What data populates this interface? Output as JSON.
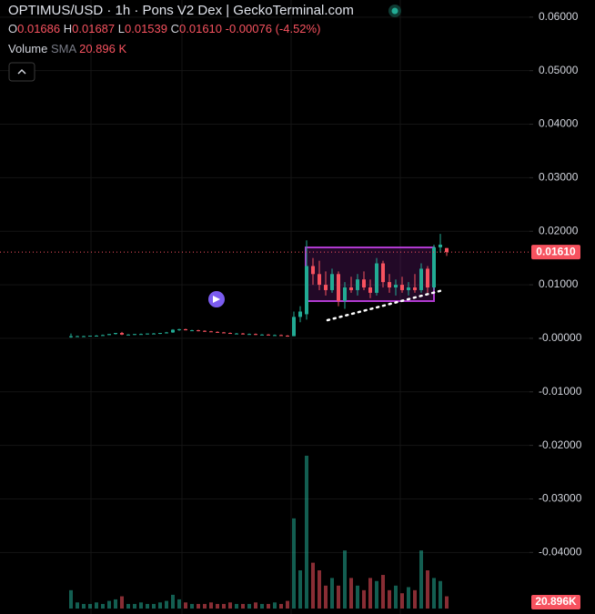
{
  "chart_data": {
    "type": "candlestick",
    "title": "OPTIMUS/USD · 1h · Pons V2 Dex | GeckoTerminal.com",
    "ohlc_labels": [
      "O",
      "H",
      "L",
      "C"
    ],
    "legend_values": [
      "0.01686",
      "0.01687",
      "0.01539",
      "0.01610"
    ],
    "change_label": "-0.00076 (-4.52%)",
    "volume_label": "Volume",
    "volume_sma_label": "SMA",
    "volume_sma_value": "20.896 K",
    "volume_last_label": "20.896K",
    "up_color": "#22ab94",
    "down_color": "#f7525f",
    "grid": true,
    "ylim": [
      -0.0515,
      0.0632
    ],
    "yticks": [
      {
        "value": 0.06,
        "label": "0.06000"
      },
      {
        "value": 0.05,
        "label": "0.05000"
      },
      {
        "value": 0.04,
        "label": "0.04000"
      },
      {
        "value": 0.03,
        "label": "0.03000"
      },
      {
        "value": 0.02,
        "label": "0.02000"
      },
      {
        "value": 0.01,
        "label": "0.01000"
      },
      {
        "value": 0,
        "label": "-0.00000"
      },
      {
        "value": -0.01,
        "label": "-0.01000"
      },
      {
        "value": -0.02,
        "label": "-0.02000"
      },
      {
        "value": -0.03,
        "label": "-0.03000"
      },
      {
        "value": -0.04,
        "label": "-0.04000"
      }
    ],
    "open": [
      0.0002,
      0.0004,
      0.0004,
      0.0004,
      0.0005,
      0.0005,
      0.0006,
      0.0008,
      0.001,
      0.0007,
      0.0007,
      0.0008,
      0.0008,
      0.0009,
      0.0009,
      0.001,
      0.0011,
      0.0016,
      0.0017,
      0.0015,
      0.0015,
      0.0014,
      0.0013,
      0.0012,
      0.0011,
      0.001,
      0.0009,
      0.0009,
      0.0008,
      0.0008,
      0.0007,
      0.0007,
      0.0006,
      0.0006,
      0.0005,
      0.0004,
      0.004,
      0.0045,
      0.0135,
      0.012,
      0.01,
      0.009,
      0.012,
      0.007,
      0.0095,
      0.009,
      0.011,
      0.0095,
      0.0085,
      0.014,
      0.0105,
      0.0095,
      0.01,
      0.009,
      0.0095,
      0.009,
      0.013,
      0.0095,
      0.017,
      0.01686
    ],
    "high": [
      0.0009,
      0.0005,
      0.0005,
      0.0005,
      0.0006,
      0.0007,
      0.0008,
      0.001,
      0.0012,
      0.0008,
      0.0008,
      0.0009,
      0.0009,
      0.001,
      0.001,
      0.0012,
      0.0017,
      0.0018,
      0.0018,
      0.0016,
      0.0016,
      0.0015,
      0.0014,
      0.0013,
      0.0012,
      0.0011,
      0.001,
      0.001,
      0.0009,
      0.0009,
      0.0008,
      0.0008,
      0.0007,
      0.0007,
      0.0006,
      0.005,
      0.006,
      0.0183,
      0.015,
      0.0145,
      0.0125,
      0.013,
      0.0125,
      0.0105,
      0.0115,
      0.012,
      0.0125,
      0.011,
      0.015,
      0.0145,
      0.012,
      0.011,
      0.0115,
      0.0105,
      0.012,
      0.014,
      0.0135,
      0.0175,
      0.0195,
      0.01687
    ],
    "low": [
      0.0001,
      0.0003,
      0.0003,
      0.0004,
      0.0004,
      0.0005,
      0.0006,
      0.0007,
      0.0006,
      0.0006,
      0.0006,
      0.0007,
      0.0007,
      0.0008,
      0.0008,
      0.0009,
      0.001,
      0.0014,
      0.0015,
      0.0014,
      0.0013,
      0.0012,
      0.0012,
      0.001,
      0.001,
      0.0009,
      0.0008,
      0.0007,
      0.0007,
      0.0006,
      0.0006,
      0.0006,
      0.0005,
      0.0005,
      0.0003,
      0.0004,
      0.003,
      0.0035,
      0.01,
      0.009,
      0.008,
      0.0085,
      0.006,
      0.0055,
      0.0085,
      0.008,
      0.009,
      0.0075,
      0.008,
      0.0095,
      0.0085,
      0.008,
      0.0085,
      0.008,
      0.0085,
      0.0085,
      0.0085,
      0.009,
      0.016,
      0.01539
    ],
    "close": [
      0.0004,
      0.0004,
      0.0004,
      0.0005,
      0.0005,
      0.0006,
      0.0008,
      0.001,
      0.0007,
      0.0007,
      0.0008,
      0.0008,
      0.0009,
      0.0009,
      0.001,
      0.0011,
      0.0016,
      0.0017,
      0.0015,
      0.0015,
      0.0014,
      0.0013,
      0.0012,
      0.0011,
      0.001,
      0.0009,
      0.0009,
      0.0008,
      0.0008,
      0.0007,
      0.0007,
      0.0006,
      0.0006,
      0.0005,
      0.0004,
      0.004,
      0.005,
      0.0135,
      0.012,
      0.01,
      0.009,
      0.012,
      0.007,
      0.0095,
      0.009,
      0.011,
      0.0095,
      0.0085,
      0.014,
      0.0105,
      0.0095,
      0.01,
      0.009,
      0.0095,
      0.009,
      0.013,
      0.0095,
      0.017,
      0.0175,
      0.0161
    ],
    "volume": [
      12,
      4,
      3,
      3,
      4,
      3,
      5,
      6,
      8,
      3,
      3,
      4,
      3,
      3,
      4,
      5,
      9,
      6,
      4,
      3,
      3,
      3,
      4,
      3,
      3,
      4,
      3,
      3,
      3,
      4,
      3,
      3,
      4,
      3,
      5,
      59,
      25,
      100,
      30,
      25,
      15,
      20,
      15,
      38,
      20,
      15,
      12,
      20,
      18,
      22,
      12,
      15,
      10,
      14,
      12,
      38,
      25,
      20,
      18,
      8
    ]
  }
}
